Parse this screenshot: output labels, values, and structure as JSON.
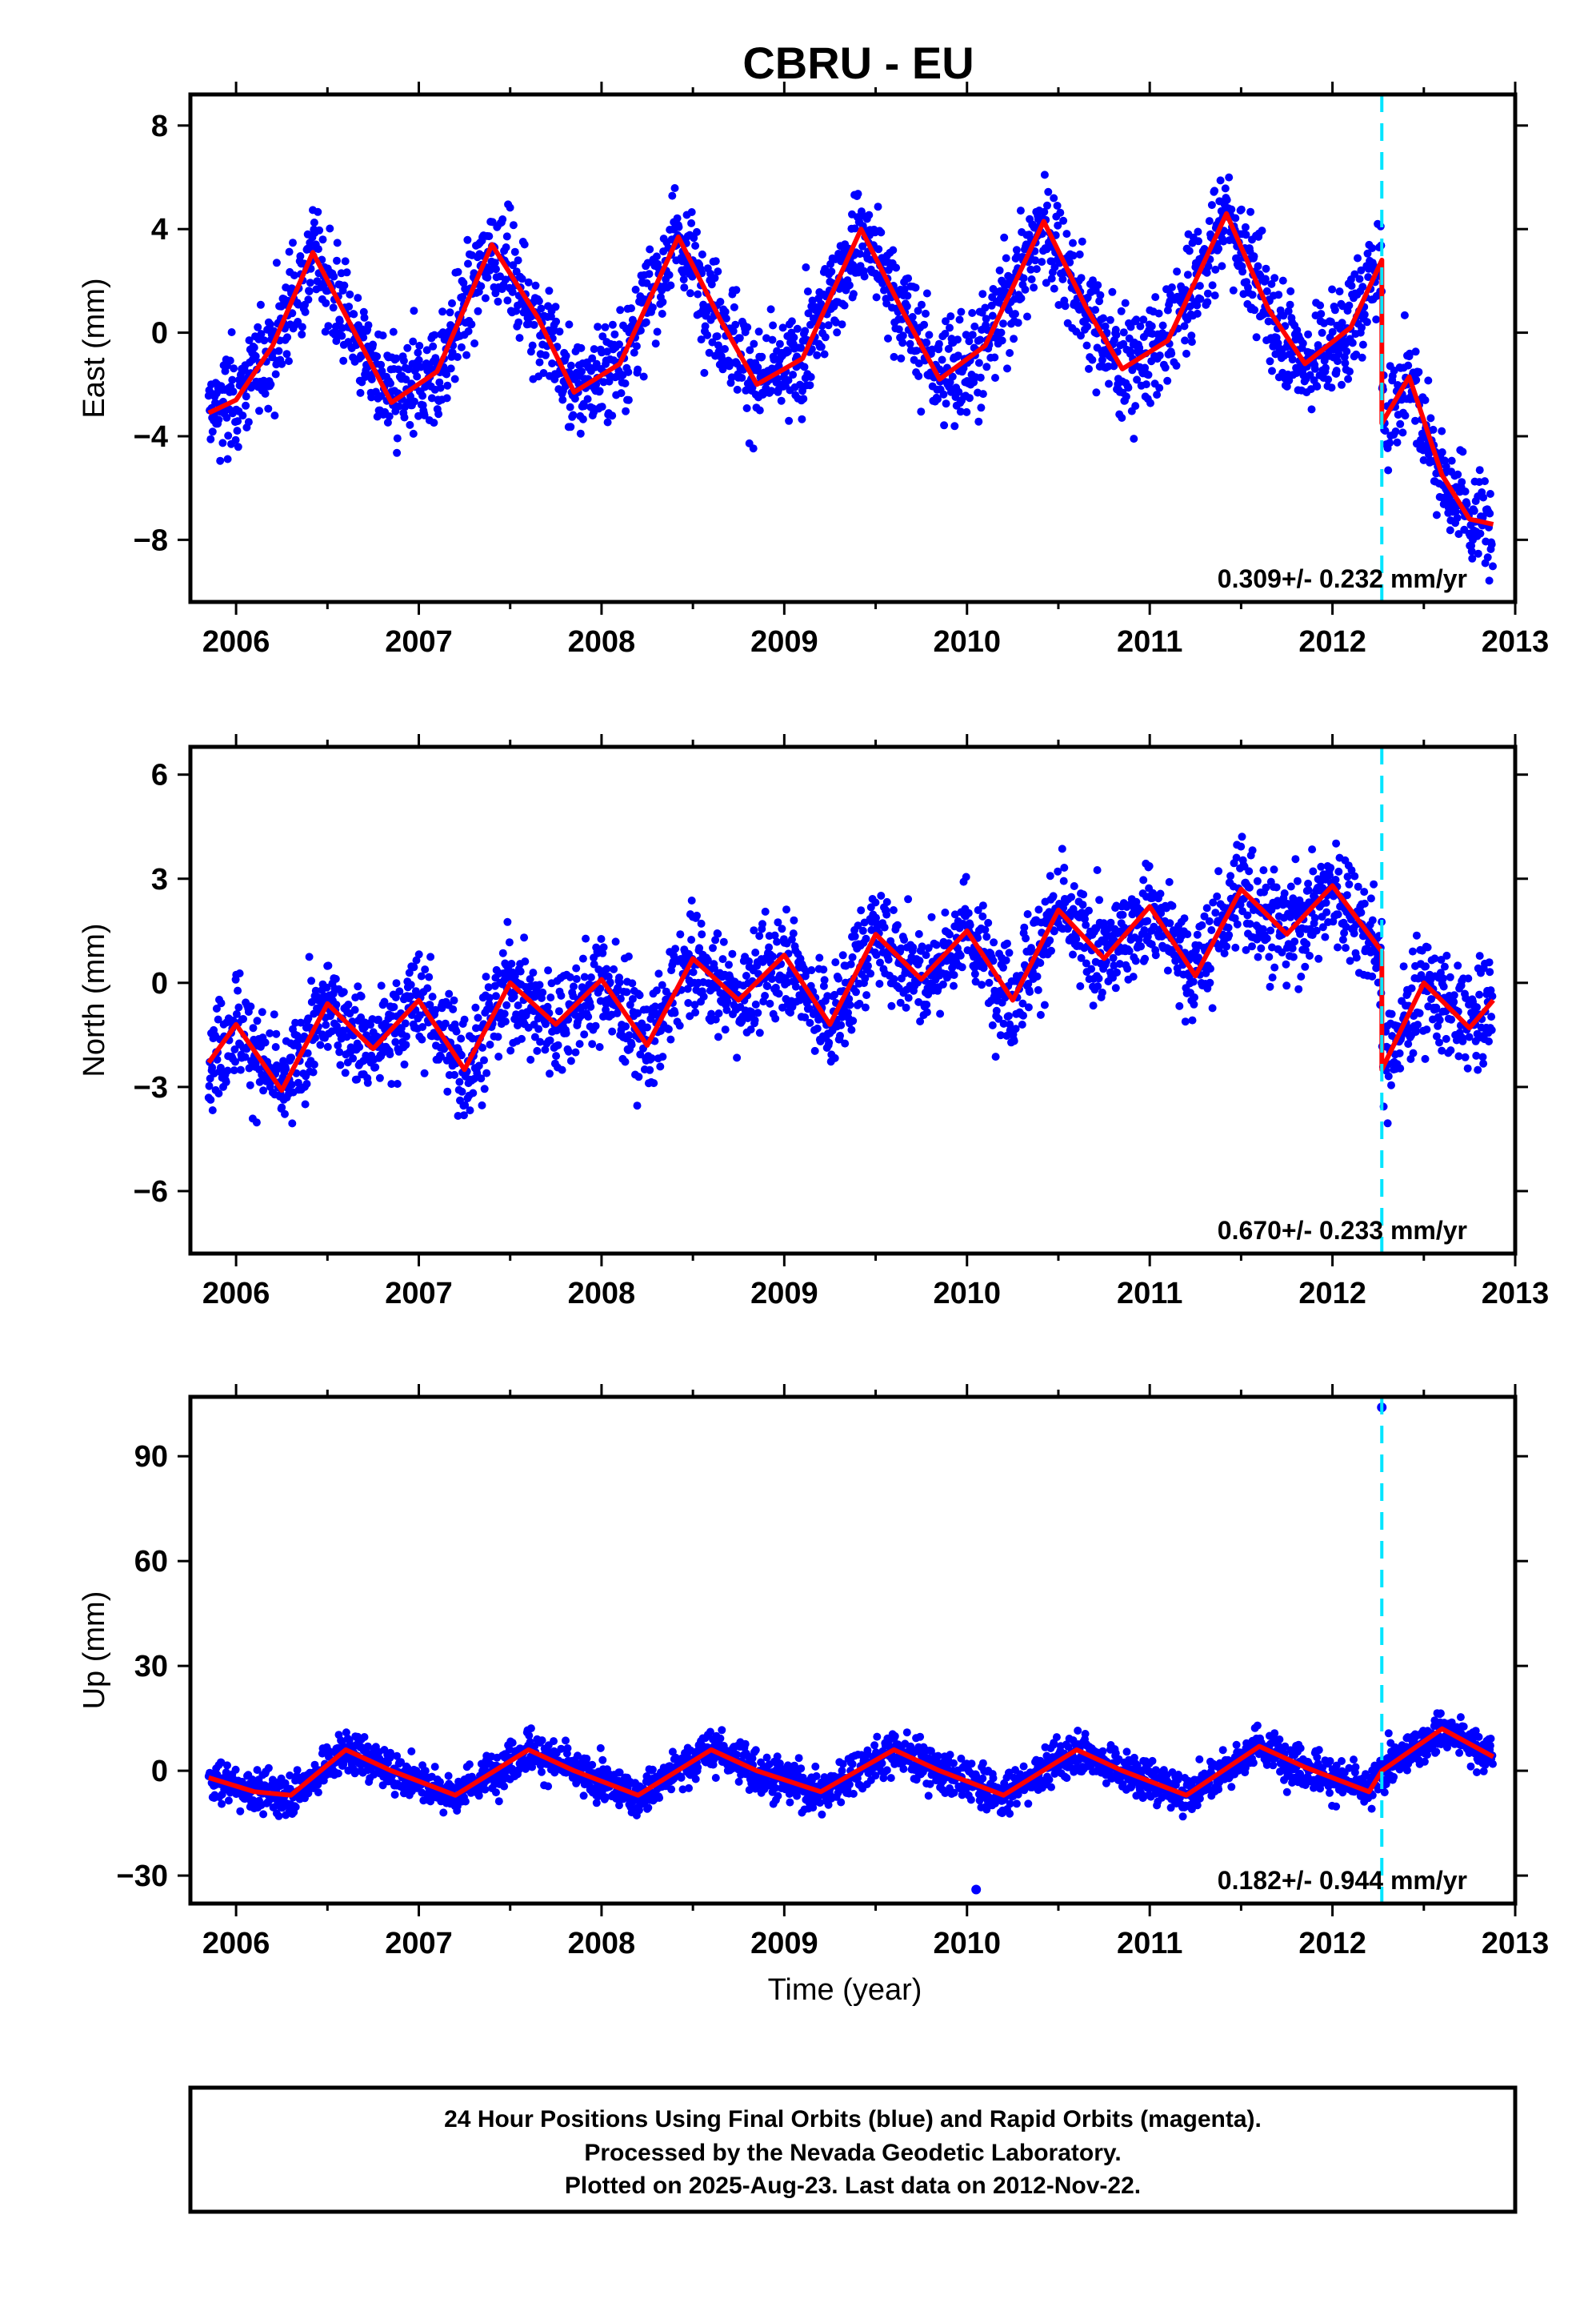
{
  "title": "CBRU - EU",
  "colors": {
    "points": "#0000ff",
    "fit": "#ff0000",
    "event": "#00e5ff"
  },
  "footer": {
    "line1": "24 Hour Positions Using Final Orbits (blue) and Rapid Orbits (magenta).",
    "line2": "Processed by the Nevada Geodetic Laboratory.",
    "line3": "Plotted on 2025-Aug-23. Last data on 2012-Nov-22."
  },
  "chart_data": [
    {
      "type": "scatter",
      "name": "east",
      "ylabel": "East (mm)",
      "xlabel": "",
      "xlim": [
        2005.75,
        2013.0
      ],
      "ylim": [
        -10.4,
        9.2
      ],
      "xticks": [
        2006,
        2007,
        2008,
        2009,
        2010,
        2011,
        2012,
        2013
      ],
      "yticks": [
        -8,
        -4,
        0,
        4,
        8
      ],
      "ytick_labels": [
        "−8",
        "−4",
        "0",
        "4",
        "8"
      ],
      "event_x": 2012.27,
      "rate_label": "0.309+/- 0.232 mm/yr",
      "fit": {
        "x": [
          2005.85,
          2006.0,
          2006.2,
          2006.42,
          2006.65,
          2006.85,
          2007.1,
          2007.4,
          2007.65,
          2007.85,
          2008.1,
          2008.42,
          2008.65,
          2008.85,
          2009.1,
          2009.42,
          2009.65,
          2009.85,
          2010.1,
          2010.42,
          2010.65,
          2010.85,
          2011.1,
          2011.42,
          2011.65,
          2011.85,
          2012.1,
          2012.27,
          2012.27,
          2012.42,
          2012.6,
          2012.75,
          2012.88
        ],
        "y": [
          -3.1,
          -2.6,
          -0.5,
          3.1,
          0.0,
          -2.7,
          -1.5,
          3.4,
          0.6,
          -2.3,
          -1.2,
          3.7,
          0.5,
          -2.0,
          -1.0,
          4.0,
          0.8,
          -1.8,
          -0.5,
          4.3,
          1.0,
          -1.4,
          -0.3,
          4.6,
          0.9,
          -1.2,
          0.2,
          2.8,
          -3.5,
          -1.7,
          -5.5,
          -7.2,
          -7.4
        ]
      }
    },
    {
      "type": "scatter",
      "name": "north",
      "ylabel": "North (mm)",
      "xlabel": "",
      "xlim": [
        2005.75,
        2013.0
      ],
      "ylim": [
        -7.8,
        6.8
      ],
      "xticks": [
        2006,
        2007,
        2008,
        2009,
        2010,
        2011,
        2012,
        2013
      ],
      "yticks": [
        -6,
        -3,
        0,
        3,
        6
      ],
      "ytick_labels": [
        "−6",
        "−3",
        "0",
        "3",
        "6"
      ],
      "event_x": 2012.27,
      "rate_label": "0.670+/- 0.233 mm/yr",
      "fit": {
        "x": [
          2005.85,
          2006.0,
          2006.25,
          2006.5,
          2006.75,
          2007.0,
          2007.25,
          2007.5,
          2007.75,
          2008.0,
          2008.25,
          2008.5,
          2008.75,
          2009.0,
          2009.25,
          2009.5,
          2009.75,
          2010.0,
          2010.25,
          2010.5,
          2010.75,
          2011.0,
          2011.25,
          2011.5,
          2011.75,
          2012.0,
          2012.27,
          2012.27,
          2012.5,
          2012.75,
          2012.88
        ],
        "y": [
          -2.3,
          -1.2,
          -3.1,
          -0.6,
          -1.9,
          -0.5,
          -2.5,
          0.0,
          -1.2,
          0.1,
          -1.8,
          0.7,
          -0.5,
          0.8,
          -1.2,
          1.4,
          0.1,
          1.5,
          -0.5,
          2.1,
          0.7,
          2.2,
          0.2,
          2.7,
          1.4,
          2.8,
          0.9,
          -2.5,
          0.0,
          -1.3,
          -0.5
        ]
      }
    },
    {
      "type": "scatter",
      "name": "up",
      "ylabel": "Up (mm)",
      "xlabel": "Time (year)",
      "xlim": [
        2005.75,
        2013.0
      ],
      "ylim": [
        -38,
        107
      ],
      "xticks": [
        2006,
        2007,
        2008,
        2009,
        2010,
        2011,
        2012,
        2013
      ],
      "yticks": [
        -30,
        0,
        30,
        60,
        90
      ],
      "ytick_labels": [
        "−30",
        "0",
        "30",
        "60",
        "90"
      ],
      "event_x": 2012.27,
      "rate_label": "0.182+/- 0.944 mm/yr",
      "outliers": [
        {
          "x": 2012.27,
          "y": 104
        },
        {
          "x": 2010.05,
          "y": -34
        }
      ],
      "fit": {
        "x": [
          2005.85,
          2006.1,
          2006.3,
          2006.6,
          2006.85,
          2007.2,
          2007.6,
          2007.85,
          2008.2,
          2008.6,
          2008.85,
          2009.2,
          2009.6,
          2009.85,
          2010.2,
          2010.6,
          2010.85,
          2011.2,
          2011.6,
          2011.85,
          2012.2,
          2012.27,
          2012.6,
          2012.88
        ],
        "y": [
          -2,
          -6,
          -7,
          6,
          0,
          -7,
          6,
          0,
          -7,
          6,
          0,
          -6,
          6,
          0,
          -7,
          6,
          0,
          -7,
          7,
          1,
          -6,
          0,
          12,
          4
        ]
      }
    }
  ]
}
